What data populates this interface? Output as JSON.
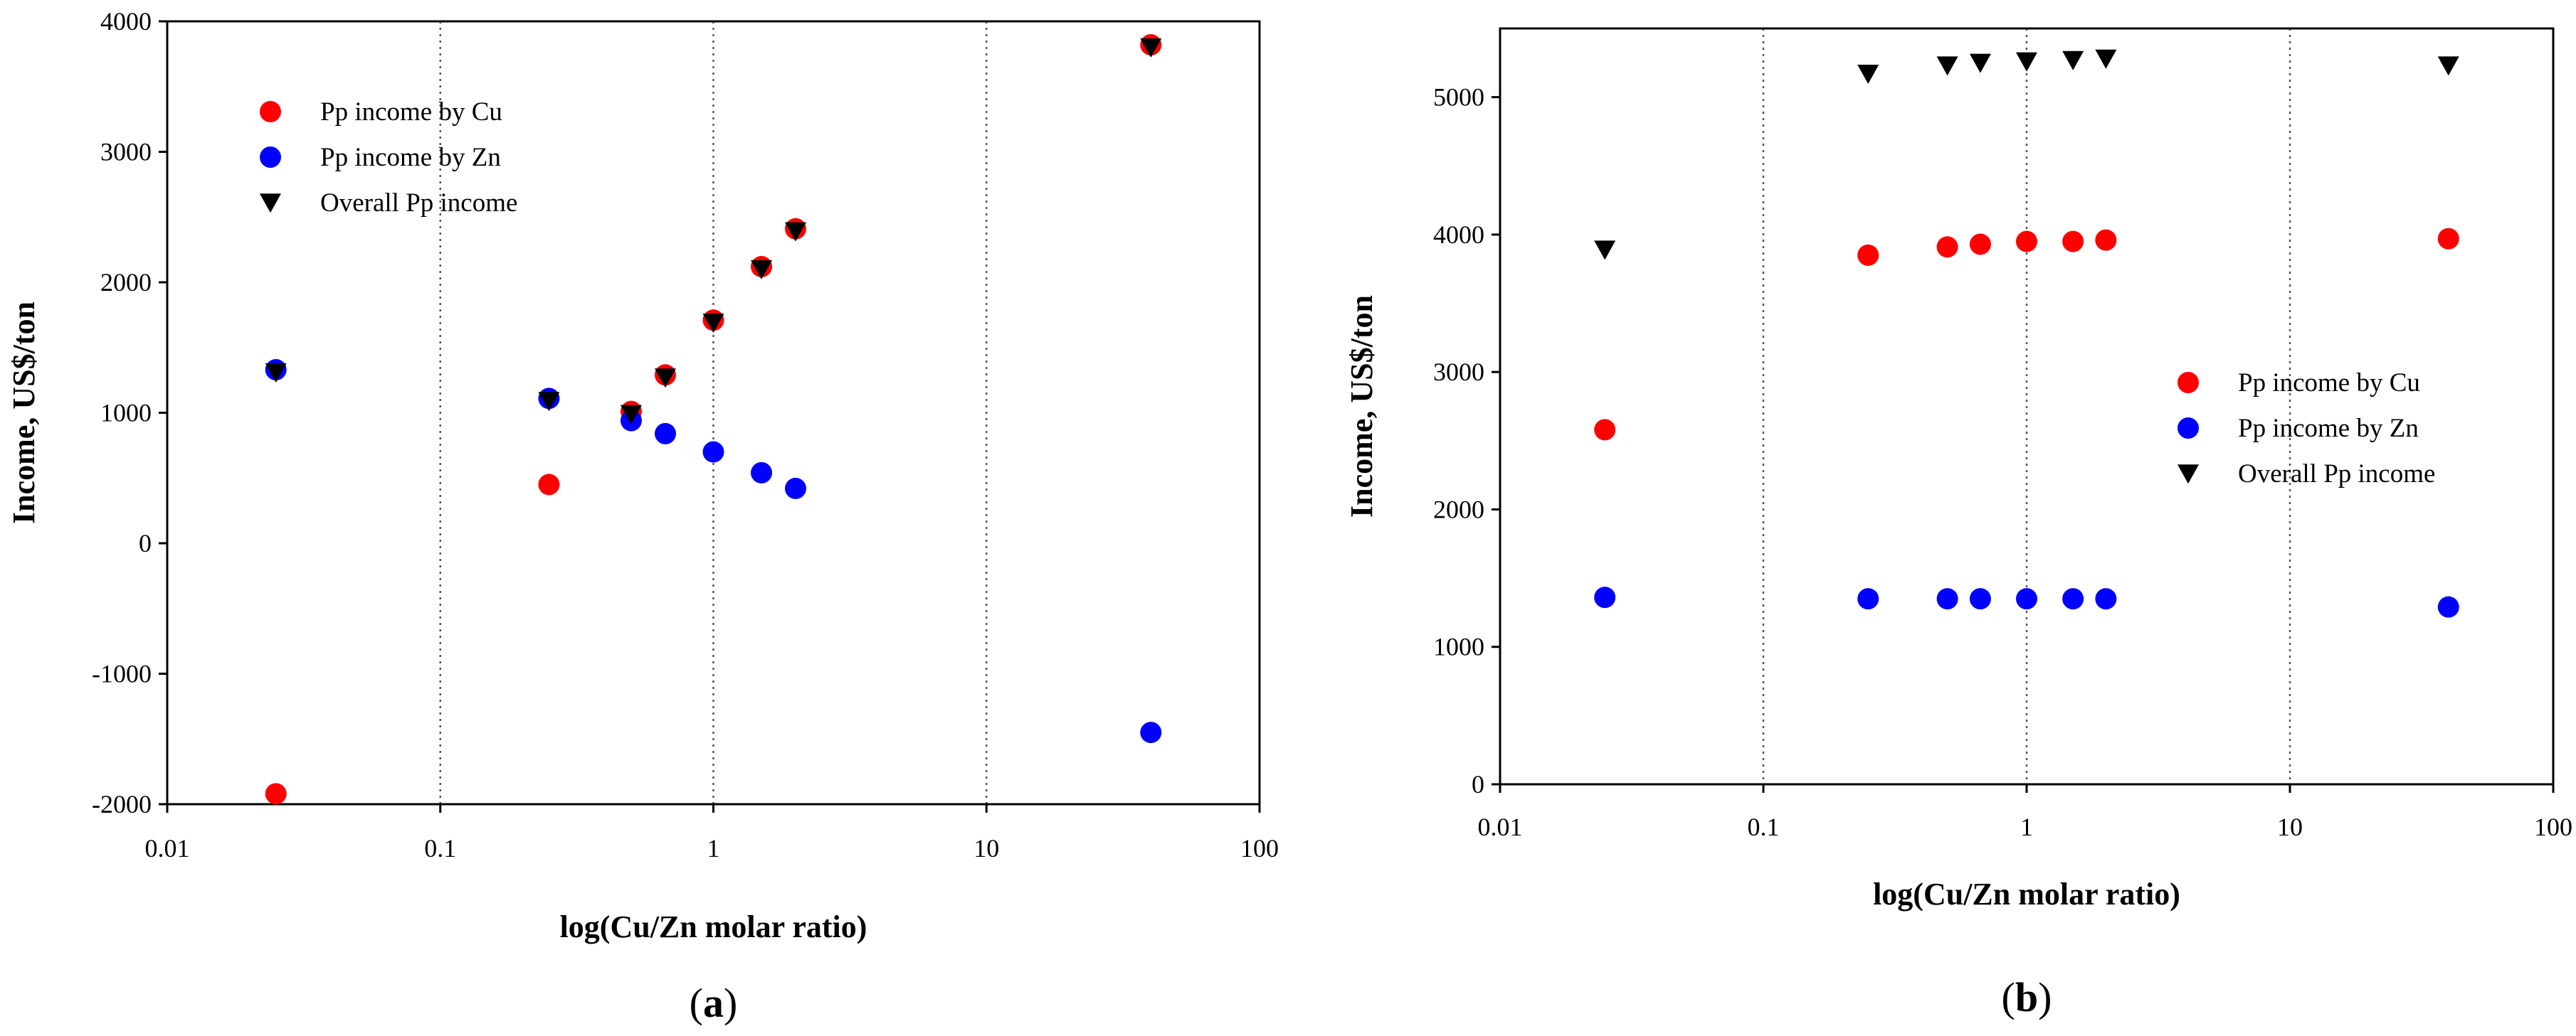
{
  "chart_data": [
    {
      "type": "scatter",
      "panel_label": "(a)",
      "xlabel": "log(Cu/Zn molar ratio)",
      "ylabel": "Income, US$/ton",
      "x_scale": "log",
      "xlim": [
        0.01,
        100
      ],
      "ylim": [
        -2000,
        4000
      ],
      "x_ticks": [
        0.01,
        0.1,
        1,
        10,
        100
      ],
      "x_tick_labels": [
        "0.01",
        "0.1",
        "1",
        "10",
        "100"
      ],
      "y_ticks": [
        -2000,
        -1000,
        0,
        1000,
        2000,
        3000,
        4000
      ],
      "y_tick_labels": [
        "-2000",
        "-1000",
        "0",
        "1000",
        "2000",
        "3000",
        "4000"
      ],
      "vertical_gridlines": [
        0.1,
        1,
        10
      ],
      "legend_position": "top-left",
      "series": [
        {
          "name": "Pp income by Cu",
          "marker": "circle",
          "color": "#ff0000",
          "points": [
            [
              0.025,
              -1920
            ],
            [
              0.25,
              450
            ],
            [
              0.5,
              1010
            ],
            [
              0.667,
              1290
            ],
            [
              1,
              1710
            ],
            [
              1.5,
              2120
            ],
            [
              2,
              2410
            ],
            [
              40,
              3820
            ]
          ]
        },
        {
          "name": "Pp income by Zn",
          "marker": "circle",
          "color": "#0000ff",
          "points": [
            [
              0.025,
              1330
            ],
            [
              0.25,
              1110
            ],
            [
              0.5,
              940
            ],
            [
              0.667,
              840
            ],
            [
              1,
              700
            ],
            [
              1.5,
              540
            ],
            [
              2,
              420
            ],
            [
              40,
              -1450
            ]
          ]
        },
        {
          "name": "Overall Pp income",
          "marker": "triangle-down",
          "color": "#000000",
          "points": [
            [
              0.025,
              1310
            ],
            [
              0.25,
              1090
            ],
            [
              0.5,
              990
            ],
            [
              0.667,
              1270
            ],
            [
              1,
              1690
            ],
            [
              1.5,
              2100
            ],
            [
              2,
              2390
            ],
            [
              40,
              3800
            ]
          ]
        }
      ]
    },
    {
      "type": "scatter",
      "panel_label": "(b)",
      "xlabel": "log(Cu/Zn molar ratio)",
      "ylabel": "Income, US$/ton",
      "x_scale": "log",
      "xlim": [
        0.01,
        100
      ],
      "ylim": [
        0,
        5500
      ],
      "x_ticks": [
        0.01,
        0.1,
        1,
        10,
        100
      ],
      "x_tick_labels": [
        "0.01",
        "0.1",
        "1",
        "10",
        "100"
      ],
      "y_ticks": [
        0,
        1000,
        2000,
        3000,
        4000,
        5000
      ],
      "y_tick_labels": [
        "0",
        "1000",
        "2000",
        "3000",
        "4000",
        "5000"
      ],
      "vertical_gridlines": [
        0.1,
        1,
        10
      ],
      "legend_position": "center-right",
      "series": [
        {
          "name": "Pp income by Cu",
          "marker": "circle",
          "color": "#ff0000",
          "points": [
            [
              0.025,
              2580
            ],
            [
              0.25,
              3850
            ],
            [
              0.5,
              3910
            ],
            [
              0.667,
              3930
            ],
            [
              1,
              3950
            ],
            [
              1.5,
              3950
            ],
            [
              2,
              3960
            ],
            [
              40,
              3970
            ]
          ]
        },
        {
          "name": "Pp income by Zn",
          "marker": "circle",
          "color": "#0000ff",
          "points": [
            [
              0.025,
              1360
            ],
            [
              0.25,
              1350
            ],
            [
              0.5,
              1350
            ],
            [
              0.667,
              1350
            ],
            [
              1,
              1350
            ],
            [
              1.5,
              1350
            ],
            [
              2,
              1350
            ],
            [
              40,
              1290
            ]
          ]
        },
        {
          "name": "Overall Pp income",
          "marker": "triangle-down",
          "color": "#000000",
          "points": [
            [
              0.025,
              3890
            ],
            [
              0.25,
              5170
            ],
            [
              0.5,
              5230
            ],
            [
              0.667,
              5250
            ],
            [
              1,
              5260
            ],
            [
              1.5,
              5270
            ],
            [
              2,
              5280
            ],
            [
              40,
              5230
            ]
          ]
        }
      ]
    }
  ]
}
